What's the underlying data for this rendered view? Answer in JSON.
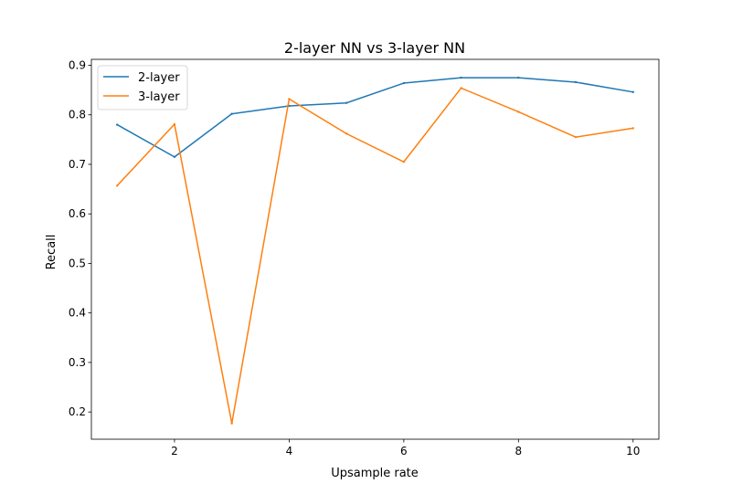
{
  "chart_data": {
    "type": "line",
    "title": "2-layer NN vs 3-layer NN",
    "xlabel": "Upsample rate",
    "ylabel": "Recall",
    "x": [
      1,
      2,
      3,
      4,
      5,
      6,
      7,
      8,
      9,
      10
    ],
    "xlim": [
      0.55,
      10.45
    ],
    "ylim": [
      0.145,
      0.912
    ],
    "xticks": [
      2,
      4,
      6,
      8,
      10
    ],
    "xtick_labels": [
      "2",
      "4",
      "6",
      "8",
      "10"
    ],
    "yticks": [
      0.2,
      0.3,
      0.4,
      0.5,
      0.6,
      0.7,
      0.8,
      0.9
    ],
    "ytick_labels": [
      "0.2",
      "0.3",
      "0.4",
      "0.5",
      "0.6",
      "0.7",
      "0.8",
      "0.9"
    ],
    "grid": false,
    "legend_position": "top-left",
    "series": [
      {
        "name": "2-layer",
        "color": "#1f77b4",
        "values": [
          0.78,
          0.715,
          0.802,
          0.818,
          0.824,
          0.864,
          0.875,
          0.875,
          0.866,
          0.846
        ]
      },
      {
        "name": "3-layer",
        "color": "#ff7f0e",
        "values": [
          0.657,
          0.781,
          0.177,
          0.832,
          0.762,
          0.705,
          0.854,
          0.806,
          0.755,
          0.773
        ]
      }
    ]
  }
}
